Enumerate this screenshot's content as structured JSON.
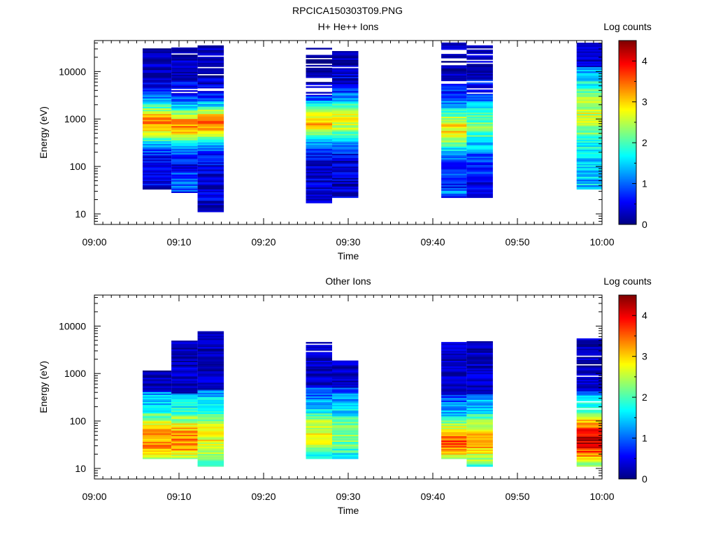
{
  "figure": {
    "title": "RPCICA150303T09.PNG"
  },
  "chart_data": [
    {
      "type": "heatmap",
      "title": "H+ He++ Ions",
      "xlabel": "Time",
      "ylabel": "Energy (eV)",
      "x_tick_labels": [
        "09:00",
        "09:10",
        "09:20",
        "09:30",
        "09:40",
        "09:50",
        "10:00"
      ],
      "x_range_minutes": [
        0,
        60
      ],
      "y_scale": "log",
      "y_tick_labels": [
        "10",
        "100",
        "1000",
        "10000"
      ],
      "y_range_eV": [
        6,
        45000
      ],
      "colorbar": {
        "label": "Log counts",
        "range": [
          0,
          4.5
        ],
        "tick_labels": [
          "0",
          "1",
          "2",
          "3",
          "4"
        ],
        "colormap": "jet"
      },
      "spectra": [
        {
          "t0": 5.7,
          "t1": 9.1,
          "emin": 33,
          "emax": 30000,
          "peak": 3.3,
          "peakE": 800,
          "width": 0.32,
          "floor": 0.4,
          "fill": 1.0,
          "lowBoost": 0.0,
          "seed": 11
        },
        {
          "t0": 9.1,
          "t1": 12.2,
          "emin": 28,
          "emax": 32000,
          "peak": 3.3,
          "peakE": 700,
          "width": 0.3,
          "floor": 0.5,
          "fill": 0.95,
          "lowBoost": 0.6,
          "seed": 12
        },
        {
          "t0": 12.2,
          "t1": 15.3,
          "emin": 11,
          "emax": 35000,
          "peak": 3.4,
          "peakE": 750,
          "width": 0.3,
          "floor": 0.4,
          "fill": 0.9,
          "lowBoost": 0.0,
          "seed": 13
        },
        {
          "t0": 25.0,
          "t1": 28.1,
          "emin": 17,
          "emax": 40000,
          "peak": 3.1,
          "peakE": 800,
          "width": 0.3,
          "floor": 0.3,
          "fill": 0.6,
          "lowBoost": 0.0,
          "seed": 14
        },
        {
          "t0": 28.1,
          "t1": 31.2,
          "emin": 22,
          "emax": 26000,
          "peak": 2.7,
          "peakE": 900,
          "width": 0.35,
          "floor": 0.3,
          "fill": 0.75,
          "lowBoost": 0.0,
          "seed": 15
        },
        {
          "t0": 41.0,
          "t1": 44.0,
          "emin": 22,
          "emax": 40000,
          "peak": 2.9,
          "peakE": 600,
          "width": 0.35,
          "floor": 0.5,
          "fill": 0.85,
          "lowBoost": 0.7,
          "seed": 16
        },
        {
          "t0": 44.0,
          "t1": 47.1,
          "emin": 22,
          "emax": 34000,
          "peak": 2.2,
          "peakE": 700,
          "width": 0.4,
          "floor": 0.4,
          "fill": 0.8,
          "lowBoost": 0.3,
          "seed": 17
        },
        {
          "t0": 57.0,
          "t1": 60.0,
          "emin": 33,
          "emax": 38000,
          "peak": 2.6,
          "peakE": 1200,
          "width": 0.55,
          "floor": 1.0,
          "fill": 0.9,
          "lowBoost": 0.5,
          "seed": 18
        }
      ]
    },
    {
      "type": "heatmap",
      "title": "Other Ions",
      "xlabel": "Time",
      "ylabel": "Energy (eV)",
      "x_tick_labels": [
        "09:00",
        "09:10",
        "09:20",
        "09:30",
        "09:40",
        "09:50",
        "10:00"
      ],
      "x_range_minutes": [
        0,
        60
      ],
      "y_scale": "log",
      "y_tick_labels": [
        "10",
        "100",
        "1000",
        "10000"
      ],
      "y_range_eV": [
        6,
        45000
      ],
      "colorbar": {
        "label": "Log counts",
        "range": [
          0,
          4.5
        ],
        "tick_labels": [
          "0",
          "1",
          "2",
          "3",
          "4"
        ],
        "colormap": "jet"
      },
      "spectra": [
        {
          "t0": 5.7,
          "t1": 9.1,
          "emin": 16,
          "emax": 1100,
          "peak": 3.3,
          "peakE": 40,
          "width": 0.4,
          "floor": 1.2,
          "fill": 1.0,
          "lowBoost": 0.0,
          "seed": 21
        },
        {
          "t0": 9.1,
          "t1": 12.2,
          "emin": 16,
          "emax": 4700,
          "peak": 3.4,
          "peakE": 38,
          "width": 0.38,
          "floor": 1.3,
          "fill": 1.0,
          "lowBoost": 0.0,
          "seed": 22
        },
        {
          "t0": 12.2,
          "t1": 15.3,
          "emin": 11,
          "emax": 7500,
          "peak": 2.8,
          "peakE": 45,
          "width": 0.42,
          "floor": 1.2,
          "fill": 0.95,
          "lowBoost": 0.0,
          "seed": 23
        },
        {
          "t0": 25.0,
          "t1": 28.1,
          "emin": 16,
          "emax": 4500,
          "peak": 2.8,
          "peakE": 50,
          "width": 0.4,
          "floor": 0.8,
          "fill": 0.95,
          "lowBoost": 0.0,
          "seed": 24
        },
        {
          "t0": 28.1,
          "t1": 31.2,
          "emin": 16,
          "emax": 1800,
          "peak": 2.3,
          "peakE": 50,
          "width": 0.4,
          "floor": 0.9,
          "fill": 1.0,
          "lowBoost": 0.0,
          "seed": 25
        },
        {
          "t0": 41.0,
          "t1": 44.0,
          "emin": 16,
          "emax": 4500,
          "peak": 3.5,
          "peakE": 35,
          "width": 0.35,
          "floor": 0.9,
          "fill": 1.0,
          "lowBoost": 0.0,
          "seed": 26
        },
        {
          "t0": 44.0,
          "t1": 47.1,
          "emin": 11,
          "emax": 4500,
          "peak": 3.1,
          "peakE": 35,
          "width": 0.38,
          "floor": 1.2,
          "fill": 1.0,
          "lowBoost": 0.0,
          "seed": 27
        },
        {
          "t0": 57.0,
          "t1": 60.0,
          "emin": 11,
          "emax": 5200,
          "peak": 4.2,
          "peakE": 40,
          "width": 0.38,
          "floor": 1.2,
          "fill": 0.9,
          "lowBoost": 0.0,
          "seed": 28
        }
      ]
    }
  ]
}
